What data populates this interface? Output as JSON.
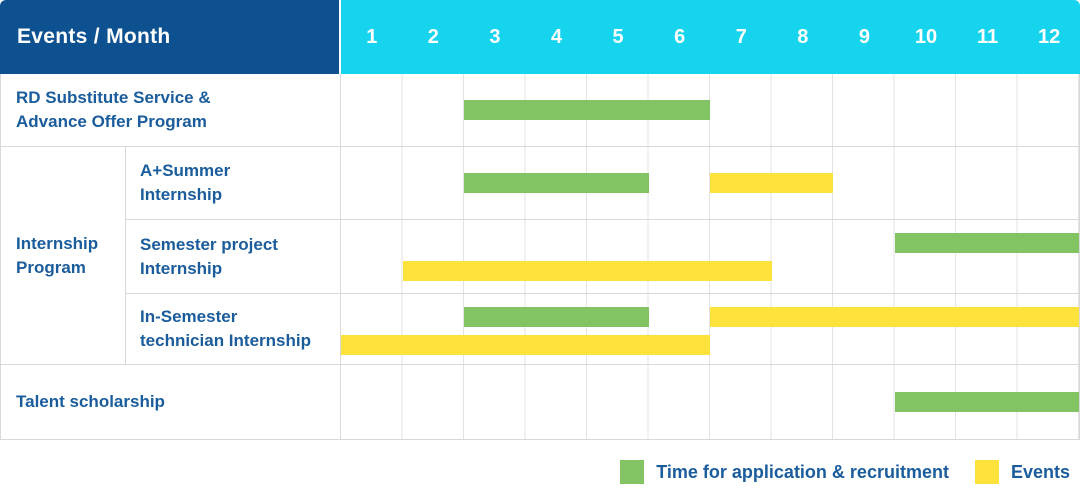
{
  "title": "Events / Month",
  "months": [
    "1",
    "2",
    "3",
    "4",
    "5",
    "6",
    "7",
    "8",
    "9",
    "10",
    "11",
    "12"
  ],
  "colors": {
    "header_bg": "#0E5191",
    "months_bg": "#17D4EE",
    "header_text": "#FFFFFF",
    "label_text": "#1A5C9C",
    "application_green": "#82C464",
    "events_yellow": "#FDE23C",
    "grid_line": "#E3E3E3",
    "border": "#D9D9D9"
  },
  "legend": {
    "items": [
      {
        "key": "application",
        "label": "Time for application & recruitment"
      },
      {
        "key": "events",
        "label": "Events"
      }
    ]
  },
  "chart_data": {
    "type": "gantt",
    "title": "Events / Month",
    "x_unit": "month",
    "x_range": [
      1,
      12
    ],
    "x_ticks": [
      "1",
      "2",
      "3",
      "4",
      "5",
      "6",
      "7",
      "8",
      "9",
      "10",
      "11",
      "12"
    ],
    "legend": [
      {
        "key": "application",
        "color": "#82C464",
        "label": "Time for application & recruitment"
      },
      {
        "key": "events",
        "color": "#FDE23C",
        "label": "Events"
      }
    ],
    "rows": [
      {
        "group": null,
        "label": "RD Substitute Service &\nAdvance Offer Program",
        "bands": [
          [
            {
              "kind": "application",
              "start_month": 3,
              "end_month": 6
            }
          ]
        ]
      },
      {
        "group": "Internship\nProgram",
        "label": "A+Summer\nInternship",
        "bands": [
          [
            {
              "kind": "application",
              "start_month": 3,
              "end_month": 5
            },
            {
              "kind": "events",
              "start_month": 7,
              "end_month": 8
            }
          ]
        ]
      },
      {
        "group": "Internship\nProgram",
        "label": "Semester project\nInternship",
        "bands": [
          [
            {
              "kind": "application",
              "start_month": 10,
              "end_month": 12
            }
          ],
          [
            {
              "kind": "events",
              "start_month": 2,
              "end_month": 7
            }
          ]
        ]
      },
      {
        "group": "Internship\nProgram",
        "label": "In-Semester\ntechnician Internship",
        "bands": [
          [
            {
              "kind": "application",
              "start_month": 3,
              "end_month": 5
            },
            {
              "kind": "events",
              "start_month": 7,
              "end_month": 12
            }
          ],
          [
            {
              "kind": "events",
              "start_month": 1,
              "end_month": 6
            }
          ]
        ]
      },
      {
        "group": null,
        "label": "Talent scholarship",
        "bands": [
          [
            {
              "kind": "application",
              "start_month": 10,
              "end_month": 12
            }
          ]
        ]
      }
    ]
  }
}
